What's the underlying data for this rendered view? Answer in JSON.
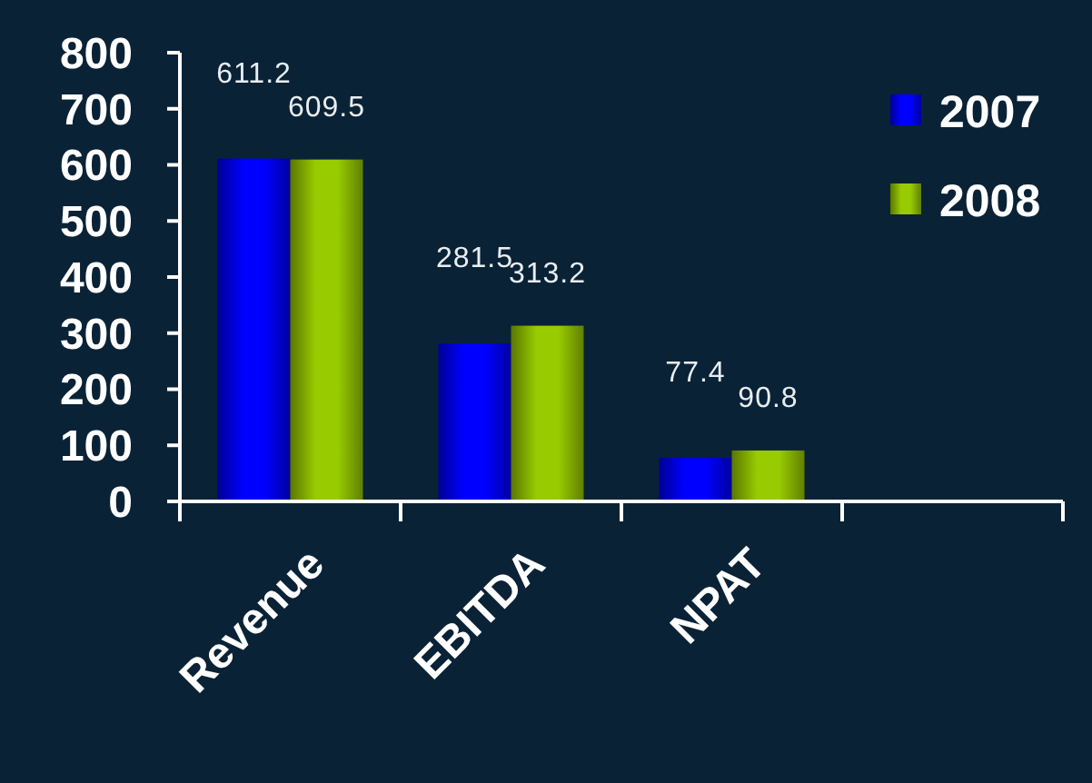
{
  "chart_data": {
    "type": "bar",
    "categories": [
      "Revenue",
      "EBITDA",
      "NPAT",
      null
    ],
    "series": [
      {
        "name": "2007",
        "color": "#0000ff",
        "values": [
          611.2,
          281.5,
          77.4,
          null
        ]
      },
      {
        "name": "2008",
        "color": "#99cc00",
        "values": [
          609.5,
          313.2,
          90.8,
          null
        ]
      }
    ],
    "ylim": [
      0,
      800
    ],
    "yticks": [
      0,
      100,
      200,
      300,
      400,
      500,
      600,
      700,
      800
    ],
    "data_labels": true,
    "legend": "top right",
    "grid": false
  }
}
